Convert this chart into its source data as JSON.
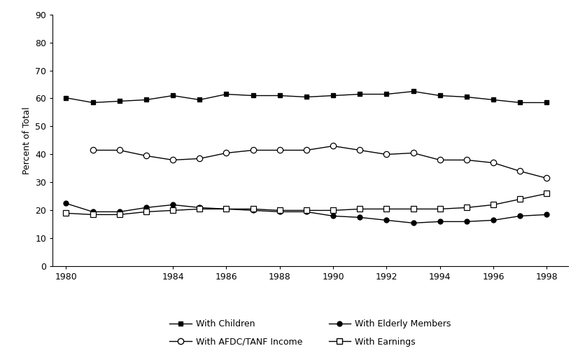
{
  "ylabel": "Percent of Total",
  "xlabel": "",
  "xlim": [
    1979.5,
    1998.8
  ],
  "ylim": [
    0,
    90
  ],
  "yticks": [
    0,
    10,
    20,
    30,
    40,
    50,
    60,
    70,
    80,
    90
  ],
  "xtick_labels": [
    "1980",
    "1984",
    "1986",
    "1988",
    "1990",
    "1992",
    "1994",
    "1996",
    "1998"
  ],
  "xtick_positions": [
    1980,
    1984,
    1986,
    1988,
    1990,
    1992,
    1994,
    1996,
    1998
  ],
  "series": {
    "with_children": {
      "label": "With Children",
      "marker": "s",
      "fillstyle": "full",
      "color": "#000000",
      "markersize": 5,
      "years": [
        1980,
        1981,
        1982,
        1983,
        1984,
        1985,
        1986,
        1987,
        1988,
        1989,
        1990,
        1991,
        1992,
        1993,
        1994,
        1995,
        1996,
        1997,
        1998
      ],
      "values": [
        60.2,
        58.5,
        59.0,
        59.5,
        61.0,
        59.5,
        61.5,
        61.0,
        61.0,
        60.5,
        61.0,
        61.5,
        61.5,
        62.5,
        61.0,
        60.5,
        59.5,
        58.5,
        58.5
      ]
    },
    "with_afdc": {
      "label": "With AFDC/TANF Income",
      "marker": "o",
      "fillstyle": "none",
      "color": "#000000",
      "markersize": 6,
      "years": [
        1981,
        1982,
        1983,
        1984,
        1985,
        1986,
        1987,
        1988,
        1989,
        1990,
        1991,
        1992,
        1993,
        1994,
        1995,
        1996,
        1997,
        1998
      ],
      "values": [
        41.5,
        41.5,
        39.5,
        38.0,
        38.5,
        40.5,
        41.5,
        41.5,
        41.5,
        43.0,
        41.5,
        40.0,
        40.5,
        38.0,
        38.0,
        37.0,
        34.0,
        31.5
      ]
    },
    "with_elderly": {
      "label": "With Elderly Members",
      "marker": "o",
      "fillstyle": "full",
      "color": "#000000",
      "markersize": 5,
      "years": [
        1980,
        1981,
        1982,
        1983,
        1984,
        1985,
        1986,
        1987,
        1988,
        1989,
        1990,
        1991,
        1992,
        1993,
        1994,
        1995,
        1996,
        1997,
        1998
      ],
      "values": [
        22.5,
        19.5,
        19.5,
        21.0,
        22.0,
        21.0,
        20.5,
        20.0,
        19.5,
        19.5,
        18.0,
        17.5,
        16.5,
        15.5,
        16.0,
        16.0,
        16.5,
        18.0,
        18.5
      ]
    },
    "with_earnings": {
      "label": "With Earnings",
      "marker": "s",
      "fillstyle": "none",
      "color": "#000000",
      "markersize": 6,
      "years": [
        1980,
        1981,
        1982,
        1983,
        1984,
        1985,
        1986,
        1987,
        1988,
        1989,
        1990,
        1991,
        1992,
        1993,
        1994,
        1995,
        1996,
        1997,
        1998
      ],
      "values": [
        19.0,
        18.5,
        18.5,
        19.5,
        20.0,
        20.5,
        20.5,
        20.5,
        20.0,
        20.0,
        20.0,
        20.5,
        20.5,
        20.5,
        20.5,
        21.0,
        22.0,
        24.0,
        26.0
      ]
    }
  },
  "background_color": "#ffffff",
  "linewidth": 1.0,
  "legend_order": [
    "with_children",
    "with_afdc",
    "with_elderly",
    "with_earnings"
  ]
}
